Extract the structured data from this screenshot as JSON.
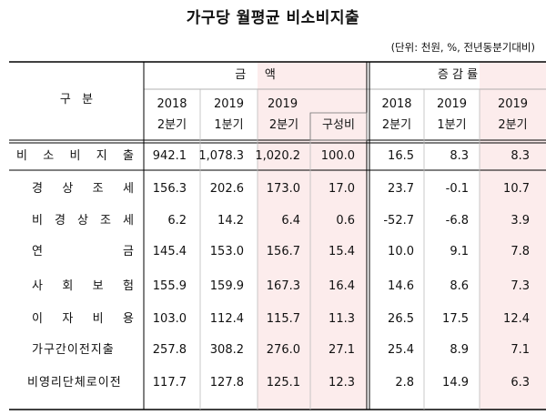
{
  "title": "가구당 월평균 비소비지출",
  "unit_note": "(단위: 천원, %, 전년동분기대비)",
  "header": {
    "category": "구   분",
    "amount_group": "금     액",
    "change_group": "증 감 률",
    "amount_cols": [
      {
        "year": "2018",
        "quarter": "2분기"
      },
      {
        "year": "2019",
        "quarter": "1분기"
      },
      {
        "year": "2019",
        "quarter": "2분기"
      },
      {
        "year": "",
        "quarter": "구성비"
      }
    ],
    "change_cols": [
      {
        "year": "2018",
        "quarter": "2분기"
      },
      {
        "year": "2019",
        "quarter": "1분기"
      },
      {
        "year": "2019",
        "quarter": "2분기"
      }
    ]
  },
  "rows": [
    {
      "label": "비 소 비 지 출",
      "values": [
        "942.1",
        "1,078.3",
        "1,020.2",
        "100.0",
        "16.5",
        "8.3",
        "8.3"
      ]
    },
    {
      "label": "경 상 조 세",
      "values": [
        "156.3",
        "202.6",
        "173.0",
        "17.0",
        "23.7",
        "-0.1",
        "10.7"
      ]
    },
    {
      "label": "비 경 상 조 세",
      "values": [
        "6.2",
        "14.2",
        "6.4",
        "0.6",
        "-52.7",
        "-6.8",
        "3.9"
      ]
    },
    {
      "label": "연   금",
      "values": [
        "145.4",
        "153.0",
        "156.7",
        "15.4",
        "10.0",
        "9.1",
        "7.8"
      ]
    },
    {
      "label": "사 회 보 험",
      "values": [
        "155.9",
        "159.9",
        "167.3",
        "16.4",
        "14.6",
        "8.6",
        "7.3"
      ]
    },
    {
      "label": "이 자 비 용",
      "values": [
        "103.0",
        "112.4",
        "115.7",
        "11.3",
        "26.5",
        "17.5",
        "12.4"
      ]
    },
    {
      "label": "가구간이전지출",
      "values": [
        "257.8",
        "308.2",
        "276.0",
        "27.1",
        "25.4",
        "8.9",
        "7.1"
      ]
    },
    {
      "label": "비영리단체로이전",
      "values": [
        "117.7",
        "127.8",
        "125.1",
        "12.3",
        "2.8",
        "14.9",
        "6.3"
      ]
    }
  ],
  "colors": {
    "highlight": "#fcecec",
    "rule": "#000000",
    "grid": "#999999"
  }
}
